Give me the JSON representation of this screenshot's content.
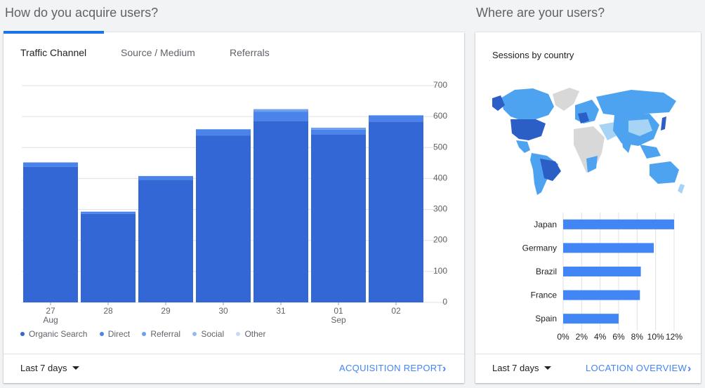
{
  "acquisition": {
    "title": "How do you acquire users?",
    "tabs": [
      {
        "label": "Traffic Channel",
        "active": true
      },
      {
        "label": "Source / Medium",
        "active": false
      },
      {
        "label": "Referrals",
        "active": false
      }
    ],
    "footer": {
      "date_range": "Last 7 days",
      "link": "ACQUISITION REPORT"
    }
  },
  "location": {
    "title": "Where are your users?",
    "subtitle": "Sessions by country",
    "footer": {
      "date_range": "Last 7 days",
      "link": "LOCATION OVERVIEW"
    }
  },
  "colors": {
    "organic": "#3367d6",
    "direct": "#4a84eb",
    "referral": "#6fa0ee",
    "social": "#96baf4",
    "other": "#c6d9f8",
    "map_dark": "#2c5fc6",
    "map_mid": "#4ea3f0",
    "map_light": "#a7d3f5",
    "map_none": "#d8d8d8",
    "bar_blue": "#4285f4",
    "link_blue": "#4285f4"
  },
  "chart_data": [
    {
      "type": "bar",
      "stacked": true,
      "categories": [
        "27",
        "28",
        "29",
        "30",
        "31",
        "01",
        "02"
      ],
      "category_sublabels": [
        "Aug",
        "",
        "",
        "",
        "",
        "Sep",
        ""
      ],
      "series": [
        {
          "name": "Organic Search",
          "values": [
            438,
            286,
            396,
            539,
            586,
            543,
            584
          ]
        },
        {
          "name": "Direct",
          "values": [
            14,
            7,
            12,
            20,
            30,
            15,
            20
          ]
        },
        {
          "name": "Referral",
          "values": [
            0,
            0,
            0,
            0,
            8,
            6,
            0
          ]
        },
        {
          "name": "Social",
          "values": [
            0,
            0,
            0,
            0,
            0,
            0,
            0
          ]
        },
        {
          "name": "Other",
          "values": [
            0,
            0,
            0,
            0,
            0,
            0,
            0
          ]
        }
      ],
      "y_ticks": [
        "700",
        "600",
        "500",
        "400",
        "300",
        "200",
        "100",
        "0"
      ],
      "ylim": [
        0,
        700
      ],
      "grid": true,
      "legend": "bottom-left"
    },
    {
      "type": "bar",
      "orientation": "horizontal",
      "categories": [
        "Japan",
        "Germany",
        "Brazil",
        "France",
        "Spain"
      ],
      "values": [
        12.0,
        9.8,
        8.4,
        8.3,
        6.0
      ],
      "x_ticks": [
        "0%",
        "2%",
        "4%",
        "6%",
        "8%",
        "10%",
        "12%"
      ],
      "xlim": [
        0,
        12
      ],
      "grid": true
    }
  ]
}
